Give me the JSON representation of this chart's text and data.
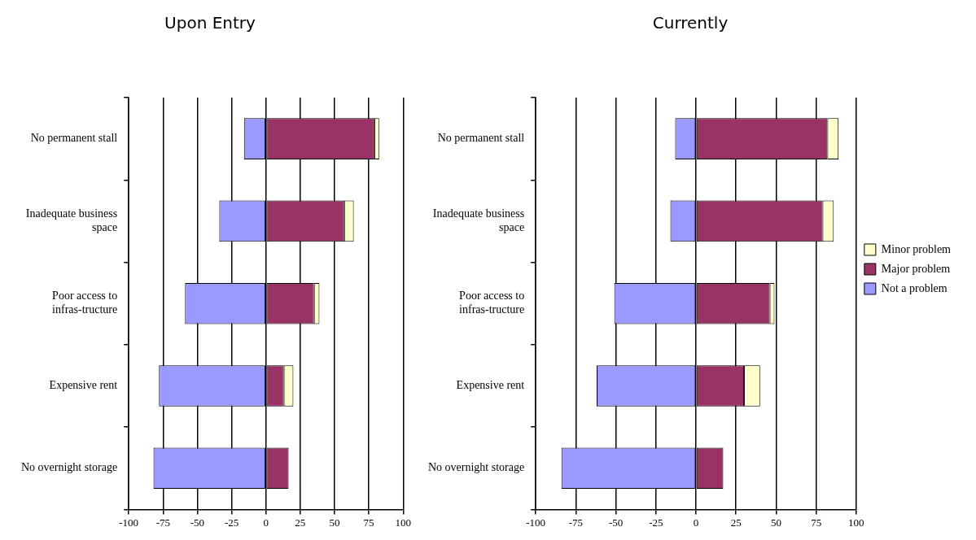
{
  "chart_data": [
    {
      "type": "bar",
      "title": "Upon Entry",
      "orientation": "horizontal",
      "stacked": true,
      "categories": [
        "No permanent stall",
        "Inadequate business space",
        "Poor access to infras-tructure",
        "Expensive rent",
        "No overnight storage"
      ],
      "series": [
        {
          "color": "#9999ff",
          "values": [
            -16,
            -34,
            -59,
            -78,
            -82
          ]
        },
        {
          "color": "#993366",
          "values": [
            79,
            57,
            35,
            13,
            16.5
          ]
        },
        {
          "color": "#ffffcc",
          "values": [
            3.5,
            7,
            4,
            7,
            null
          ]
        }
      ],
      "xlim": [
        -100,
        100
      ],
      "xticks": [
        -100,
        -75,
        -50,
        -25,
        0,
        25,
        50,
        75,
        100
      ],
      "grid": "x",
      "legend": false
    },
    {
      "type": "bar",
      "title": "Currently",
      "orientation": "horizontal",
      "stacked": true,
      "categories": [
        "No permanent stall",
        "Inadequate business space",
        "Poor access to infras-tructure",
        "Expensive rent",
        "No overnight storage"
      ],
      "series": [
        {
          "name": "Not a problem",
          "color": "#9999ff",
          "values": [
            -13,
            -16,
            -51,
            -62,
            -84
          ]
        },
        {
          "name": "Major problem",
          "color": "#993366",
          "values": [
            82,
            79,
            46,
            30,
            17
          ]
        },
        {
          "name": "Minor problem",
          "color": "#ffffcc",
          "values": [
            7,
            7,
            3,
            10,
            null
          ]
        }
      ],
      "xlim": [
        -100,
        100
      ],
      "xticks": [
        -100,
        -75,
        -50,
        -25,
        0,
        25,
        50,
        75,
        100
      ],
      "grid": "x",
      "legend": "right"
    }
  ]
}
